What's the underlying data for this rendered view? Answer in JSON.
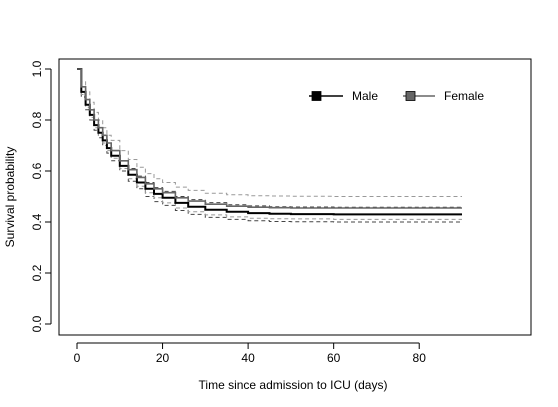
{
  "chart_data": {
    "type": "line",
    "title": "",
    "xlabel": "Time since admission to ICU (days)",
    "ylabel": "Survival probability",
    "xlim": [
      0,
      90
    ],
    "ylim": [
      0,
      1
    ],
    "xticks": [
      "0",
      "20",
      "40",
      "60",
      "80"
    ],
    "yticks": [
      "0.0",
      "0.2",
      "0.4",
      "0.6",
      "0.8",
      "1.0"
    ],
    "grid": false,
    "legend": "top-right",
    "series": [
      {
        "name": "Male",
        "color": "#000000",
        "x": [
          0,
          1,
          2,
          3,
          4,
          5,
          6,
          7,
          8,
          10,
          12,
          14,
          16,
          18,
          20,
          23,
          26,
          30,
          35,
          40,
          45,
          50,
          60,
          70,
          80,
          90
        ],
        "y": [
          1.0,
          0.91,
          0.86,
          0.82,
          0.78,
          0.75,
          0.72,
          0.69,
          0.66,
          0.62,
          0.585,
          0.555,
          0.53,
          0.51,
          0.495,
          0.475,
          0.46,
          0.448,
          0.44,
          0.435,
          0.432,
          0.431,
          0.43,
          0.43,
          0.43,
          0.43
        ],
        "ci_lower": [
          1.0,
          0.89,
          0.84,
          0.8,
          0.76,
          0.73,
          0.7,
          0.67,
          0.64,
          0.6,
          0.56,
          0.53,
          0.5,
          0.48,
          0.465,
          0.445,
          0.43,
          0.418,
          0.41,
          0.405,
          0.402,
          0.401,
          0.4,
          0.4,
          0.4,
          0.4
        ],
        "ci_upper": [
          1.0,
          0.93,
          0.88,
          0.84,
          0.8,
          0.77,
          0.74,
          0.71,
          0.68,
          0.64,
          0.61,
          0.58,
          0.555,
          0.535,
          0.52,
          0.5,
          0.488,
          0.476,
          0.468,
          0.463,
          0.46,
          0.459,
          0.458,
          0.458,
          0.458,
          0.458
        ]
      },
      {
        "name": "Female",
        "color": "#666666",
        "x": [
          0,
          1,
          2,
          3,
          4,
          5,
          6,
          7,
          8,
          10,
          12,
          14,
          16,
          18,
          20,
          23,
          26,
          30,
          35,
          40,
          45,
          50,
          60,
          70,
          80,
          90
        ],
        "y": [
          1.0,
          0.93,
          0.88,
          0.84,
          0.8,
          0.77,
          0.74,
          0.71,
          0.68,
          0.64,
          0.605,
          0.575,
          0.55,
          0.53,
          0.515,
          0.495,
          0.482,
          0.47,
          0.462,
          0.458,
          0.456,
          0.455,
          0.455,
          0.455,
          0.455,
          0.455
        ],
        "ci_lower": [
          1.0,
          0.9,
          0.85,
          0.81,
          0.77,
          0.74,
          0.71,
          0.68,
          0.65,
          0.61,
          0.57,
          0.54,
          0.515,
          0.495,
          0.475,
          0.455,
          0.44,
          0.428,
          0.42,
          0.415,
          0.413,
          0.412,
          0.41,
          0.41,
          0.41,
          0.41
        ],
        "ci_upper": [
          1.0,
          0.95,
          0.91,
          0.87,
          0.83,
          0.8,
          0.77,
          0.74,
          0.72,
          0.68,
          0.645,
          0.615,
          0.59,
          0.57,
          0.555,
          0.537,
          0.524,
          0.513,
          0.507,
          0.503,
          0.502,
          0.501,
          0.5,
          0.5,
          0.5,
          0.5
        ]
      }
    ]
  }
}
